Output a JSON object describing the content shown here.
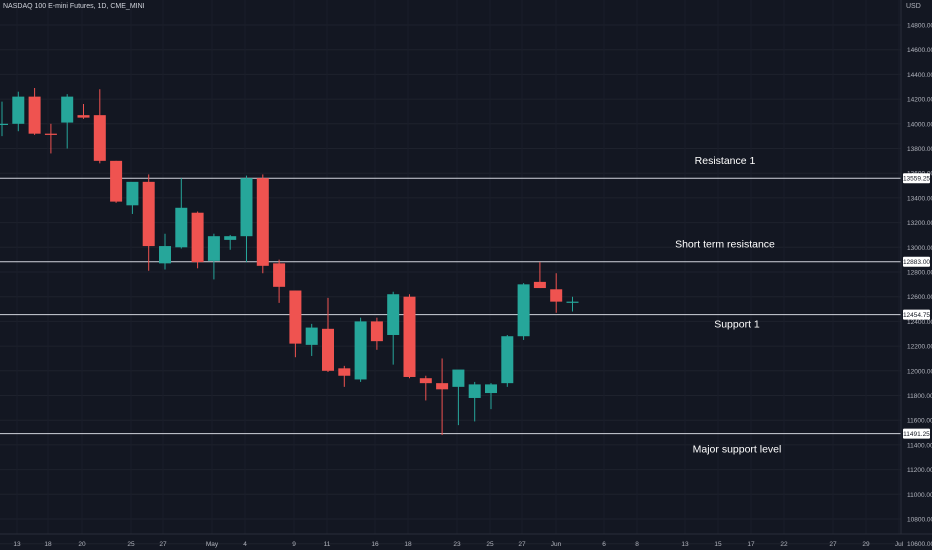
{
  "chart_data": {
    "type": "candlestick",
    "title": "NASDAQ 100 E-mini Futures, 1D, CME_MINI",
    "currency": "USD",
    "y_ticks": [
      "14800.00",
      "14600.00",
      "14400.00",
      "14200.00",
      "14000.00",
      "13800.00",
      "13600.00",
      "13400.00",
      "13200.00",
      "13000.00",
      "12800.00",
      "12600.00",
      "12400.00",
      "12200.00",
      "12000.00",
      "11800.00",
      "11600.00",
      "11400.00",
      "11200.00",
      "11000.00",
      "10800.00",
      "10600.00"
    ],
    "ylim": [
      10550,
      14950
    ],
    "x_ticks": [
      "13",
      "18",
      "20",
      "25",
      "27",
      "May",
      "4",
      "9",
      "11",
      "16",
      "18",
      "23",
      "25",
      "27",
      "Jun",
      "6",
      "8",
      "13",
      "15",
      "17",
      "22",
      "27",
      "29",
      "Jul"
    ],
    "up_color": "#26a69a",
    "down_color": "#ef5350",
    "candles": [
      {
        "index": 0,
        "open": 14000,
        "high": 14180,
        "low": 13900,
        "close": 14000
      },
      {
        "index": 1,
        "open": 14000,
        "high": 14260,
        "low": 13940,
        "close": 14220
      },
      {
        "index": 2,
        "open": 14220,
        "high": 14290,
        "low": 13910,
        "close": 13920
      },
      {
        "index": 3,
        "open": 13920,
        "high": 14000,
        "low": 13760,
        "close": 13910
      },
      {
        "index": 4,
        "open": 14010,
        "high": 14240,
        "low": 13800,
        "close": 14220
      },
      {
        "index": 5,
        "open": 14070,
        "high": 14160,
        "low": 14040,
        "close": 14050
      },
      {
        "index": 6,
        "open": 14070,
        "high": 14280,
        "low": 13680,
        "close": 13700
      },
      {
        "index": 7,
        "open": 13700,
        "high": 13700,
        "low": 13360,
        "close": 13370
      },
      {
        "index": 8,
        "open": 13340,
        "high": 13490,
        "low": 13270,
        "close": 13530
      },
      {
        "index": 9,
        "open": 13530,
        "high": 13590,
        "low": 12810,
        "close": 13010
      },
      {
        "index": 10,
        "open": 12870,
        "high": 13110,
        "low": 12820,
        "close": 13010
      },
      {
        "index": 11,
        "open": 13000,
        "high": 13560,
        "low": 12990,
        "close": 13320
      },
      {
        "index": 12,
        "open": 13280,
        "high": 13290,
        "low": 12830,
        "close": 12880
      },
      {
        "index": 13,
        "open": 12890,
        "high": 13110,
        "low": 12740,
        "close": 13090
      },
      {
        "index": 14,
        "open": 13060,
        "high": 13100,
        "low": 12980,
        "close": 13090
      },
      {
        "index": 15,
        "open": 13090,
        "high": 13580,
        "low": 12880,
        "close": 13560
      },
      {
        "index": 16,
        "open": 13560,
        "high": 13590,
        "low": 12790,
        "close": 12850
      },
      {
        "index": 17,
        "open": 12870,
        "high": 12900,
        "low": 12550,
        "close": 12680
      },
      {
        "index": 18,
        "open": 12650,
        "high": 12650,
        "low": 12110,
        "close": 12220
      },
      {
        "index": 19,
        "open": 12210,
        "high": 12380,
        "low": 12120,
        "close": 12350
      },
      {
        "index": 20,
        "open": 12340,
        "high": 12590,
        "low": 11990,
        "close": 12000
      },
      {
        "index": 21,
        "open": 12020,
        "high": 12040,
        "low": 11870,
        "close": 11960
      },
      {
        "index": 22,
        "open": 11930,
        "high": 12430,
        "low": 11910,
        "close": 12400
      },
      {
        "index": 23,
        "open": 12400,
        "high": 12430,
        "low": 12170,
        "close": 12240
      },
      {
        "index": 24,
        "open": 12290,
        "high": 12640,
        "low": 12050,
        "close": 12620
      },
      {
        "index": 25,
        "open": 12600,
        "high": 12620,
        "low": 11940,
        "close": 11950
      },
      {
        "index": 26,
        "open": 11940,
        "high": 11960,
        "low": 11760,
        "close": 11900
      },
      {
        "index": 27,
        "open": 11900,
        "high": 12100,
        "low": 11480,
        "close": 11850
      },
      {
        "index": 28,
        "open": 11870,
        "high": 12000,
        "low": 11560,
        "close": 12010
      },
      {
        "index": 29,
        "open": 11780,
        "high": 11910,
        "low": 11590,
        "close": 11890
      },
      {
        "index": 30,
        "open": 11820,
        "high": 11900,
        "low": 11690,
        "close": 11890
      },
      {
        "index": 31,
        "open": 11900,
        "high": 12290,
        "low": 11870,
        "close": 12280
      },
      {
        "index": 32,
        "open": 12280,
        "high": 12710,
        "low": 12250,
        "close": 12700
      },
      {
        "index": 33,
        "open": 12720,
        "high": 12880,
        "low": 12670,
        "close": 12670
      },
      {
        "index": 34,
        "open": 12660,
        "high": 12790,
        "low": 12470,
        "close": 12560
      },
      {
        "index": 35,
        "open": 12560,
        "high": 12600,
        "low": 12480,
        "close": 12560
      }
    ],
    "levels": [
      {
        "name": "resistance-1",
        "label": "Resistance 1",
        "value": 13559.25,
        "value_text": "13559.25"
      },
      {
        "name": "short-term-resistance",
        "label": "Short term resistance",
        "value": 12883.0,
        "value_text": "12883.00"
      },
      {
        "name": "support-1",
        "label": "Support 1",
        "value": 12454.75,
        "value_text": "12454.75"
      },
      {
        "name": "major-support-level",
        "label": "Major support level",
        "value": 11491.25,
        "value_text": "11491.25"
      }
    ]
  }
}
